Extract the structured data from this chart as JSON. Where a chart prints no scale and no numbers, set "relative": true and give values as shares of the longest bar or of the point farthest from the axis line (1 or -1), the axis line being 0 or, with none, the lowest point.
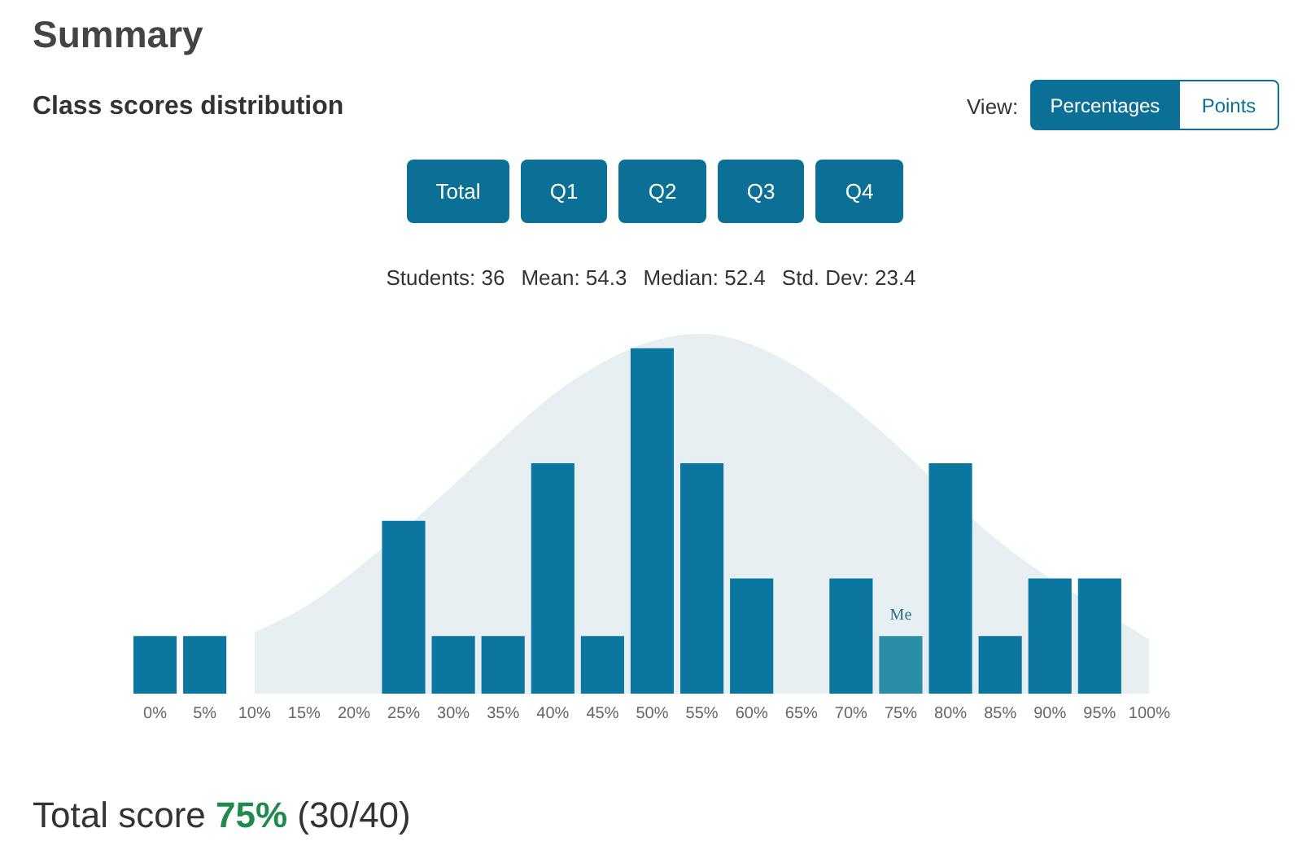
{
  "chart_data": {
    "type": "bar",
    "relative": true,
    "title": "Summary",
    "subtitle": "Class scores distribution",
    "annotations": [
      "View:",
      "Percentages",
      "Points",
      "Total",
      "Q1",
      "Q2",
      "Q3",
      "Q4",
      "Students: 36",
      "Mean: 54.3",
      "Median: 52.4",
      "Std. Dev: 23.4",
      "Total score",
      "75%",
      "(30/40)",
      {
        "text": "Me",
        "x": "75%",
        "y": 0.16
      }
    ],
    "categories": [
      "0%",
      "5%",
      "10%",
      "15%",
      "20%",
      "25%",
      "30%",
      "35%",
      "40%",
      "45%",
      "50%",
      "55%",
      "60%",
      "65%",
      "70%",
      "75%",
      "80%",
      "85%",
      "90%",
      "95%",
      "100%"
    ],
    "series": [
      {
        "type": "area",
        "color": "#e8eff2",
        "values": [
          null,
          null,
          0.17,
          0.24,
          0.34,
          null,
          0.58,
          0.71,
          0.83,
          0.92,
          0.98,
          1,
          0.97,
          0.9,
          0.8,
          0.68,
          null,
          0.42,
          null,
          null,
          0.15
        ]
      },
      {
        "colors": [
          "#0b77a0",
          "#0b77a0",
          "#0b77a0",
          "#0b77a0",
          "#0b77a0",
          "#0b77a0",
          "#0b77a0",
          "#0b77a0",
          "#0b77a0",
          "#0b77a0",
          "#0b77a0",
          "#0b77a0",
          "#0b77a0",
          "#0b77a0",
          "#0b77a0",
          "#2a8ea6",
          "#0b77a0",
          "#0b77a0",
          "#0b77a0",
          "#0b77a0",
          "#0b77a0"
        ],
        "values": [
          0.16,
          0.16,
          0,
          0,
          0,
          0.48,
          0.16,
          0.16,
          0.64,
          0.16,
          0.96,
          0.64,
          0.32,
          0,
          0.32,
          0.16,
          0.64,
          0.16,
          0.32,
          0.32,
          0
        ]
      }
    ],
    "grid": false,
    "legend": false
  }
}
